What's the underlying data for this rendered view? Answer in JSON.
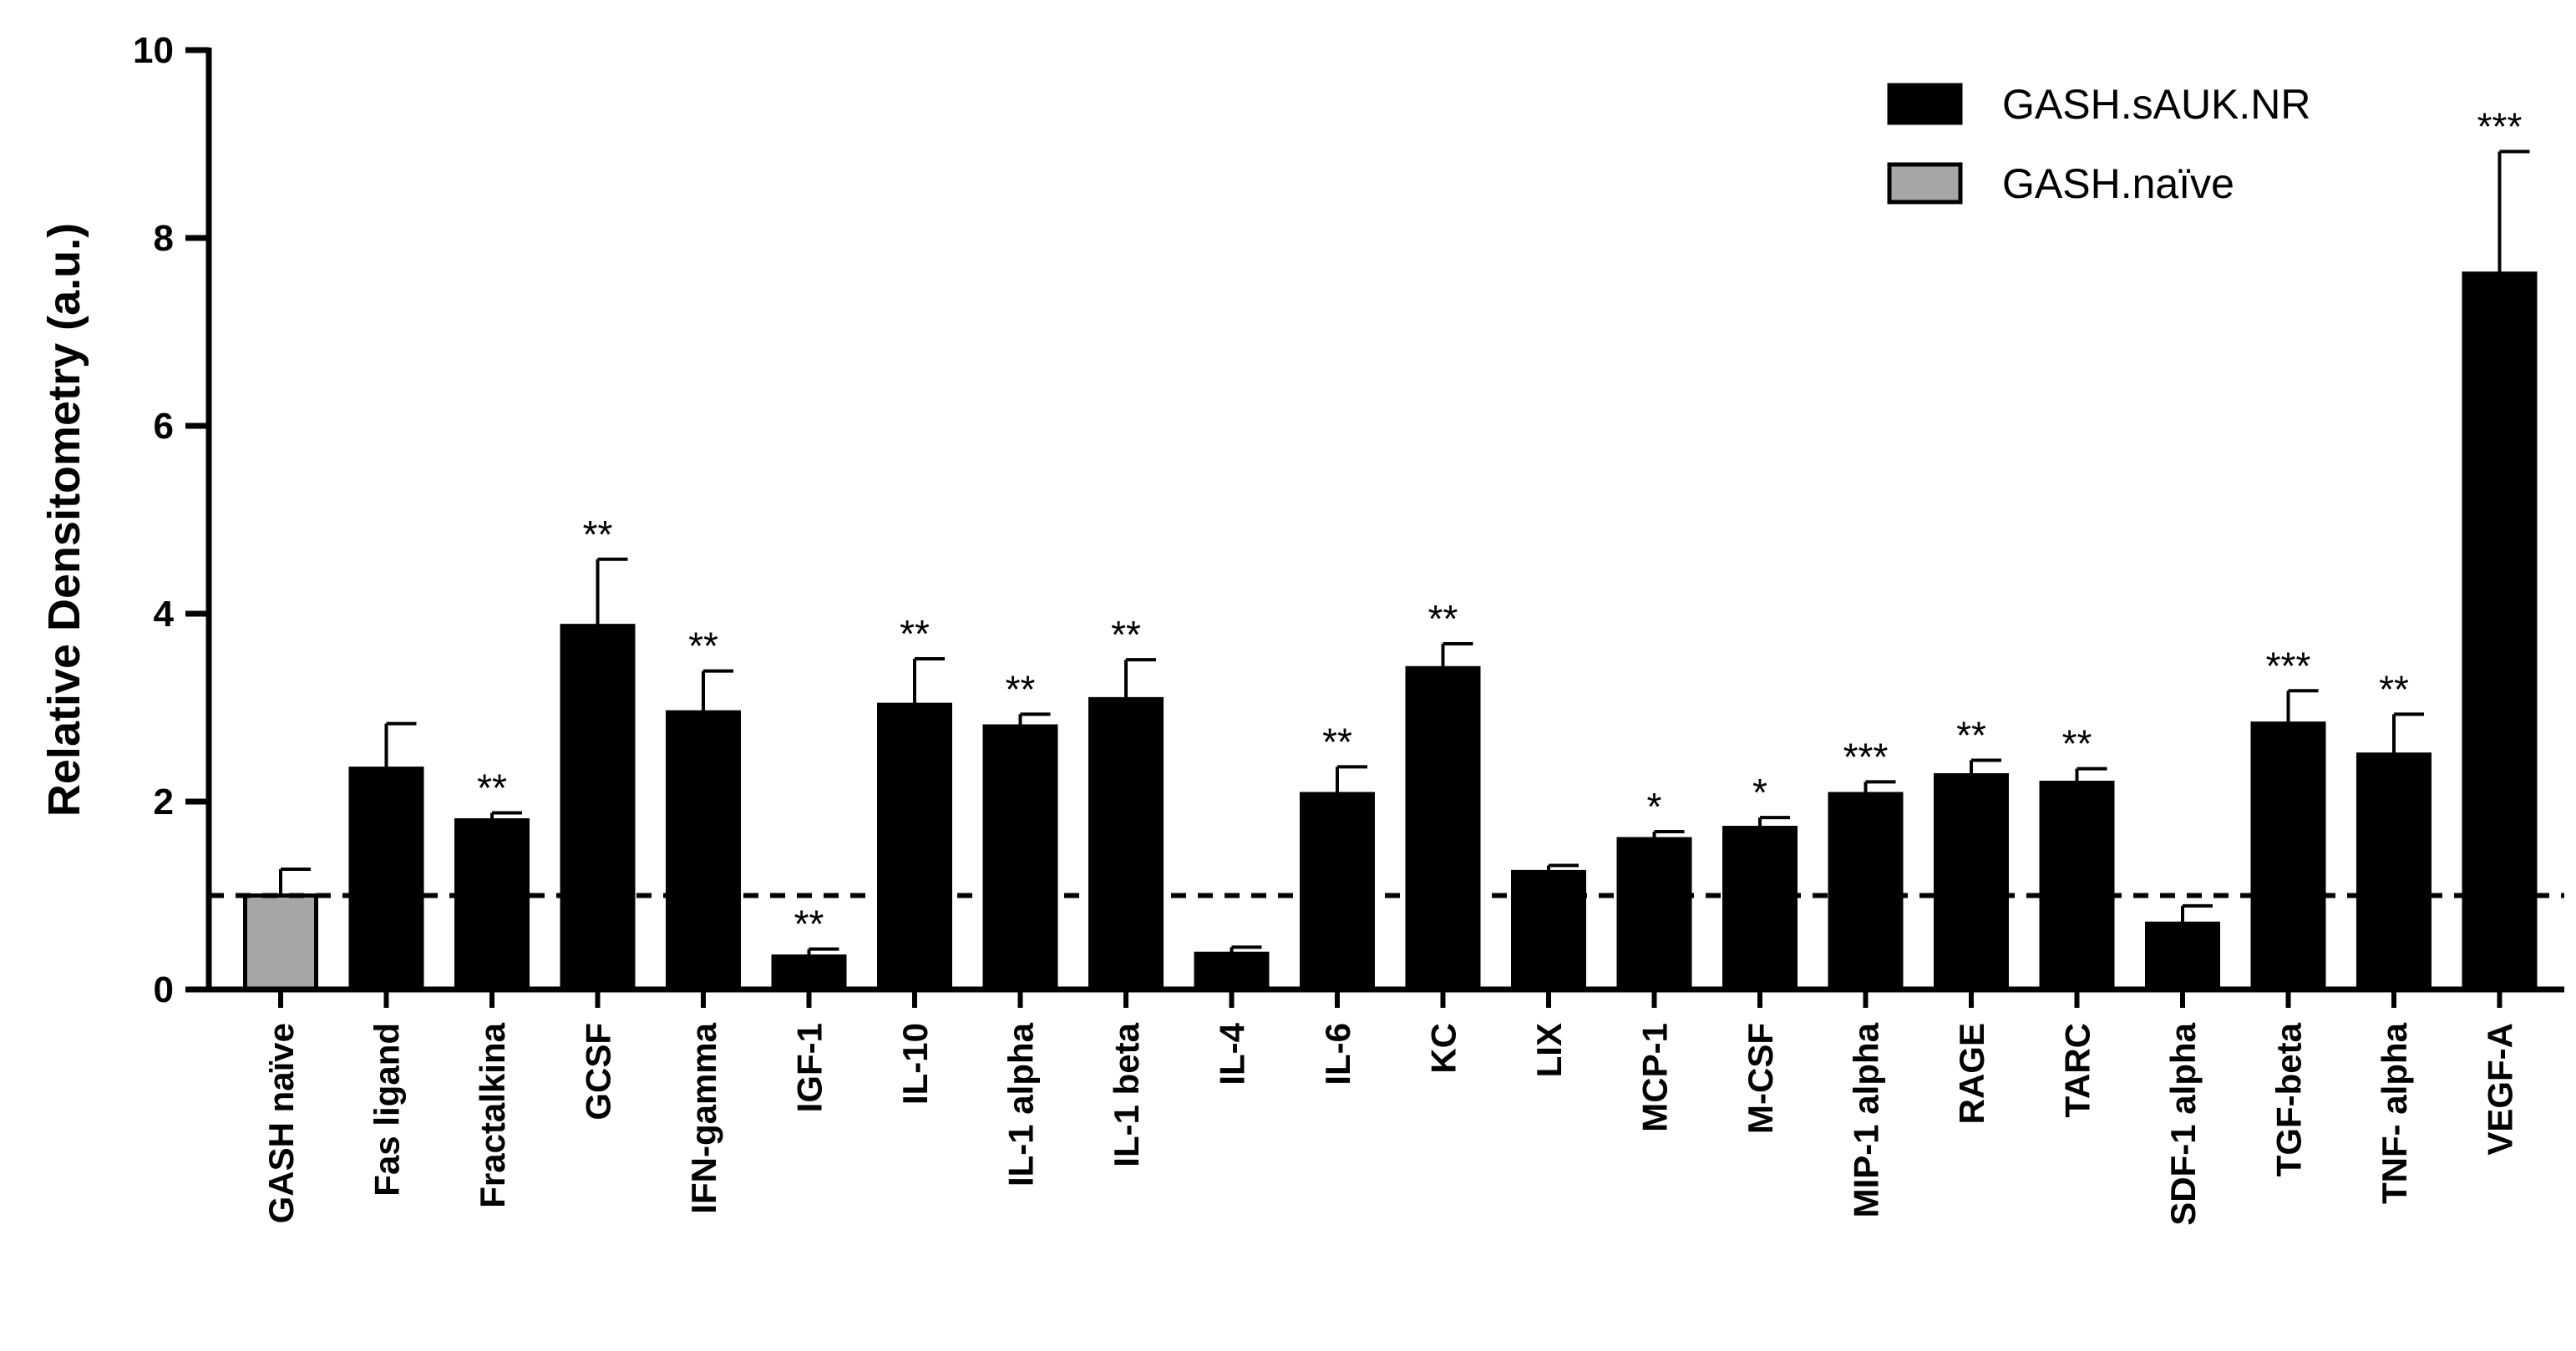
{
  "chart_data": {
    "type": "bar",
    "title": "",
    "xlabel": "",
    "ylabel": "Relative Densitometry (a.u.)",
    "ylim": [
      0,
      10
    ],
    "yticks": [
      "0",
      "2",
      "4",
      "6",
      "8",
      "10"
    ],
    "reference_line": 1,
    "legend": {
      "placement": "top-right",
      "entries": [
        {
          "name": "GASH.sAUK.NR",
          "color": "#000000"
        },
        {
          "name": "GASH.naïve",
          "color": "#a6a6a6"
        }
      ]
    },
    "categories": [
      "GASH naïve",
      "Fas ligand",
      "Fractalkina",
      "GCSF",
      "IFN-gamma",
      "IGF-1",
      "IL-10",
      "IL-1 alpha",
      "IL-1 beta",
      "IL-4",
      "IL-6",
      "KC",
      "LIX",
      "MCP-1",
      "M-CSF",
      "MIP-1 alpha",
      "RAGE",
      "TARC",
      "SDF-1 alpha",
      "TGF-beta",
      "TNF- alpha",
      "VEGF-A"
    ],
    "values": [
      1.0,
      2.35,
      1.8,
      3.87,
      2.95,
      0.35,
      3.03,
      2.8,
      3.09,
      0.38,
      2.08,
      3.42,
      1.25,
      1.6,
      1.72,
      2.08,
      2.28,
      2.2,
      0.7,
      2.83,
      2.5,
      7.62
    ],
    "errors": [
      0.28,
      0.48,
      0.08,
      0.71,
      0.44,
      0.08,
      0.49,
      0.13,
      0.42,
      0.07,
      0.29,
      0.26,
      0.07,
      0.08,
      0.11,
      0.13,
      0.16,
      0.15,
      0.19,
      0.35,
      0.43,
      1.3
    ],
    "significance": [
      "",
      "",
      "**",
      "**",
      "**",
      "**",
      "**",
      "**",
      "**",
      "",
      "**",
      "**",
      "",
      "*",
      "*",
      "***",
      "**",
      "**",
      "",
      "***",
      "**",
      "***"
    ],
    "series_of_bar": [
      "GASH.naïve",
      "GASH.sAUK.NR",
      "GASH.sAUK.NR",
      "GASH.sAUK.NR",
      "GASH.sAUK.NR",
      "GASH.sAUK.NR",
      "GASH.sAUK.NR",
      "GASH.sAUK.NR",
      "GASH.sAUK.NR",
      "GASH.sAUK.NR",
      "GASH.sAUK.NR",
      "GASH.sAUK.NR",
      "GASH.sAUK.NR",
      "GASH.sAUK.NR",
      "GASH.sAUK.NR",
      "GASH.sAUK.NR",
      "GASH.sAUK.NR",
      "GASH.sAUK.NR",
      "GASH.sAUK.NR",
      "GASH.sAUK.NR",
      "GASH.sAUK.NR",
      "GASH.sAUK.NR"
    ],
    "grid": false
  }
}
